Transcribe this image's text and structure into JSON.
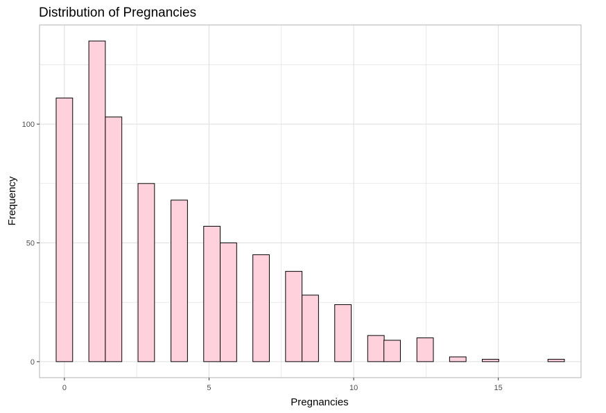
{
  "chart_data": {
    "type": "bar",
    "title": "Distribution of Pregnancies",
    "xlabel": "Pregnancies",
    "ylabel": "Frequency",
    "bin_width": 0.57,
    "bins": [
      {
        "x": 0.0,
        "count": 111
      },
      {
        "x": 1.13,
        "count": 135
      },
      {
        "x": 1.7,
        "count": 103
      },
      {
        "x": 2.83,
        "count": 75
      },
      {
        "x": 3.97,
        "count": 68
      },
      {
        "x": 5.1,
        "count": 57
      },
      {
        "x": 5.67,
        "count": 50
      },
      {
        "x": 6.8,
        "count": 45
      },
      {
        "x": 7.93,
        "count": 38
      },
      {
        "x": 8.5,
        "count": 28
      },
      {
        "x": 9.63,
        "count": 24
      },
      {
        "x": 10.77,
        "count": 11
      },
      {
        "x": 11.33,
        "count": 9
      },
      {
        "x": 12.47,
        "count": 10
      },
      {
        "x": 13.6,
        "count": 2
      },
      {
        "x": 14.73,
        "count": 1
      },
      {
        "x": 17.0,
        "count": 1
      }
    ],
    "xlim": [
      -0.86,
      17.86
    ],
    "ylim": [
      -6.75,
      141.75
    ],
    "x_ticks": [
      0,
      5,
      10,
      15
    ],
    "y_ticks": [
      0,
      50,
      100
    ],
    "grid": true,
    "legend": "none",
    "colors": {
      "fill": "#ffd1dc",
      "outline": "#000000",
      "grid": "#dedede",
      "panel_border": "#b3b3b3"
    }
  }
}
